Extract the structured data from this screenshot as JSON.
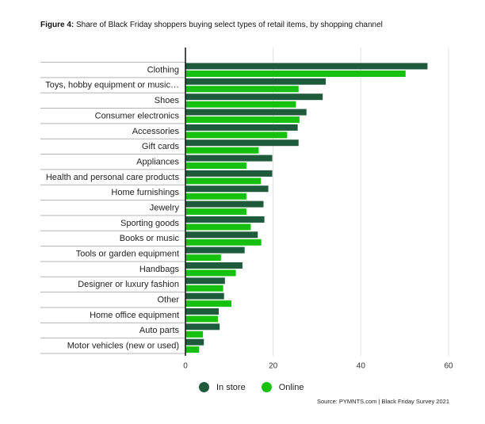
{
  "title": {
    "lead": "Figure 4:",
    "text": " Share of Black Friday shoppers buying select types of retail items, by shopping channel"
  },
  "source": "Source: PYMNTS.com | Black Friday Survey 2021",
  "colors": {
    "in_store": "#1e5a3c",
    "online": "#16c00f"
  },
  "chart_data": {
    "type": "bar",
    "orientation": "horizontal",
    "categories": [
      "Clothing",
      "Toys, hobby equipment or music…",
      "Shoes",
      "Consumer electronics",
      "Accessories",
      "Gift cards",
      "Appliances",
      "Health and personal care products",
      "Home furnishings",
      "Jewelry",
      "Sporting goods",
      "Books or music",
      "Tools or garden equipment",
      "Handbags",
      "Designer or luxury fashion",
      "Other",
      "Home office equipment",
      "Auto parts",
      "Motor vehicles (new or used)"
    ],
    "series": [
      {
        "name": "In store",
        "values": [
          55.2,
          32.0,
          31.3,
          27.6,
          25.6,
          25.8,
          19.8,
          19.8,
          18.9,
          17.8,
          18.0,
          16.5,
          13.5,
          13.0,
          9.0,
          8.8,
          7.6,
          7.8,
          4.2
        ]
      },
      {
        "name": "Online",
        "values": [
          50.2,
          25.8,
          25.2,
          26.0,
          23.2,
          16.7,
          13.9,
          17.2,
          13.9,
          13.9,
          14.9,
          17.3,
          8.1,
          11.5,
          8.6,
          10.5,
          7.4,
          4.0,
          3.1
        ]
      }
    ],
    "xlim": [
      0,
      60
    ],
    "xticks": [
      0,
      20,
      40,
      60
    ],
    "grid": true,
    "legend_position": "bottom"
  }
}
